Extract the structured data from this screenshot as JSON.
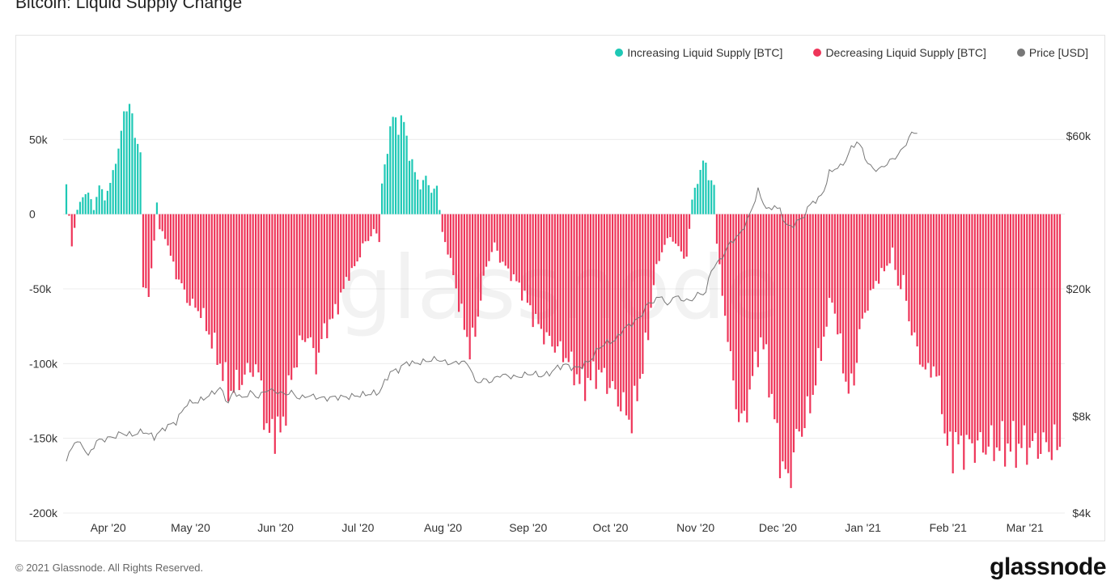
{
  "title": "Bitcoin: Liquid Supply Change",
  "footer": {
    "copyright": "© 2021 Glassnode. All Rights Reserved.",
    "brand": "glassnode"
  },
  "watermark": "glassnode",
  "colors": {
    "increase": "#1ec8b5",
    "decrease": "#ee3559",
    "price": "#777777",
    "grid": "#ececec",
    "axis_text": "#333333"
  },
  "legend": [
    {
      "label": "Increasing Liquid Supply [BTC]",
      "color": "#1ec8b5"
    },
    {
      "label": "Decreasing Liquid Supply [BTC]",
      "color": "#ee3559"
    },
    {
      "label": "Price [USD]",
      "color": "#777777"
    }
  ],
  "chart_data": {
    "type": "bar",
    "title": "Bitcoin: Liquid Supply Change",
    "x_start_date": "2020-03-20",
    "x_end_date": "2021-03-17",
    "x_tick_labels": [
      "Apr '20",
      "May '20",
      "Jun '20",
      "Jul '20",
      "Aug '20",
      "Sep '20",
      "Oct '20",
      "Nov '20",
      "Dec '20",
      "Jan '21",
      "Feb '21",
      "Mar '21"
    ],
    "x_tick_dates": [
      "2020-04-01",
      "2020-05-01",
      "2020-06-01",
      "2020-07-01",
      "2020-08-01",
      "2020-09-01",
      "2020-10-01",
      "2020-11-01",
      "2020-12-01",
      "2021-01-01",
      "2021-02-01",
      "2021-03-01"
    ],
    "y_left": {
      "ticks": [
        50000,
        0,
        -50000,
        -100000,
        -150000,
        -200000
      ],
      "tick_labels": [
        "50k",
        "0",
        "-50k",
        "-100k",
        "-150k",
        "-200k"
      ],
      "range": [
        -200000,
        100000
      ]
    },
    "y_right": {
      "scale": "log",
      "ticks": [
        60000,
        20000,
        8000,
        4000
      ],
      "tick_labels": [
        "$60k",
        "$20k",
        "$8k",
        "$4k"
      ],
      "range": [
        4000,
        100000
      ]
    },
    "grid": true,
    "legend_position": "top-right",
    "series": [
      {
        "name": "Liquid Supply Change [BTC]",
        "kind": "bar",
        "color_positive": "#1ec8b5",
        "color_negative": "#ee3559",
        "keypoints": [
          [
            0,
            20000
          ],
          [
            2,
            -22000
          ],
          [
            4,
            3000
          ],
          [
            6,
            12000
          ],
          [
            8,
            15000
          ],
          [
            10,
            3000
          ],
          [
            12,
            20000
          ],
          [
            14,
            10000
          ],
          [
            17,
            27000
          ],
          [
            19,
            45000
          ],
          [
            21,
            65000
          ],
          [
            23,
            78000
          ],
          [
            25,
            50000
          ],
          [
            27,
            45000
          ],
          [
            28,
            -45000
          ],
          [
            30,
            -55000
          ],
          [
            31,
            -40000
          ],
          [
            33,
            8000
          ],
          [
            34,
            -10000
          ],
          [
            36,
            -15000
          ],
          [
            38,
            -28000
          ],
          [
            40,
            -40000
          ],
          [
            42,
            -48000
          ],
          [
            45,
            -60000
          ],
          [
            48,
            -63000
          ],
          [
            50,
            -70000
          ],
          [
            53,
            -85000
          ],
          [
            56,
            -100000
          ],
          [
            59,
            -118000
          ],
          [
            62,
            -115000
          ],
          [
            65,
            -108000
          ],
          [
            68,
            -102000
          ],
          [
            71,
            -112000
          ],
          [
            73,
            -152000
          ],
          [
            75,
            -140000
          ],
          [
            77,
            -150000
          ],
          [
            79,
            -138000
          ],
          [
            82,
            -110000
          ],
          [
            85,
            -88000
          ],
          [
            88,
            -80000
          ],
          [
            91,
            -100000
          ],
          [
            94,
            -78000
          ],
          [
            97,
            -70000
          ],
          [
            100,
            -55000
          ],
          [
            103,
            -40000
          ],
          [
            106,
            -33000
          ],
          [
            108,
            -20000
          ],
          [
            110,
            -18000
          ],
          [
            112,
            -10000
          ],
          [
            114,
            -18000
          ],
          [
            115,
            20000
          ],
          [
            117,
            45000
          ],
          [
            119,
            65000
          ],
          [
            121,
            60000
          ],
          [
            123,
            62000
          ],
          [
            125,
            40000
          ],
          [
            127,
            28000
          ],
          [
            129,
            18000
          ],
          [
            131,
            25000
          ],
          [
            133,
            15000
          ],
          [
            135,
            18000
          ],
          [
            137,
            -12000
          ],
          [
            139,
            -25000
          ],
          [
            141,
            -40000
          ],
          [
            143,
            -60000
          ],
          [
            145,
            -75000
          ],
          [
            147,
            -90000
          ],
          [
            149,
            -80000
          ],
          [
            151,
            -55000
          ],
          [
            153,
            -35000
          ],
          [
            156,
            -20000
          ],
          [
            158,
            -30000
          ],
          [
            161,
            -38000
          ],
          [
            164,
            -45000
          ],
          [
            167,
            -55000
          ],
          [
            170,
            -68000
          ],
          [
            173,
            -78000
          ],
          [
            176,
            -85000
          ],
          [
            179,
            -90000
          ],
          [
            182,
            -95000
          ],
          [
            185,
            -105000
          ],
          [
            188,
            -115000
          ],
          [
            191,
            -110000
          ],
          [
            194,
            -105000
          ],
          [
            197,
            -112000
          ],
          [
            200,
            -120000
          ],
          [
            203,
            -130000
          ],
          [
            206,
            -138000
          ],
          [
            208,
            -120000
          ],
          [
            210,
            -100000
          ],
          [
            212,
            -80000
          ],
          [
            214,
            -45000
          ],
          [
            216,
            -30000
          ],
          [
            218,
            -20000
          ],
          [
            220,
            -15000
          ],
          [
            222,
            -20000
          ],
          [
            224,
            -25000
          ],
          [
            226,
            -30000
          ],
          [
            228,
            10000
          ],
          [
            230,
            22000
          ],
          [
            232,
            37000
          ],
          [
            234,
            25000
          ],
          [
            236,
            20000
          ],
          [
            237,
            -18000
          ],
          [
            239,
            -55000
          ],
          [
            241,
            -80000
          ],
          [
            243,
            -115000
          ],
          [
            245,
            -135000
          ],
          [
            247,
            -140000
          ],
          [
            249,
            -118000
          ],
          [
            251,
            -100000
          ],
          [
            253,
            -85000
          ],
          [
            255,
            -95000
          ],
          [
            257,
            -125000
          ],
          [
            259,
            -150000
          ],
          [
            261,
            -170000
          ],
          [
            263,
            -180000
          ],
          [
            265,
            -160000
          ],
          [
            267,
            -145000
          ],
          [
            269,
            -140000
          ],
          [
            271,
            -128000
          ],
          [
            273,
            -110000
          ],
          [
            275,
            -92000
          ],
          [
            277,
            -72000
          ],
          [
            279,
            -55000
          ],
          [
            281,
            -78000
          ],
          [
            283,
            -100000
          ],
          [
            285,
            -120000
          ],
          [
            287,
            -110000
          ],
          [
            289,
            -80000
          ],
          [
            291,
            -65000
          ],
          [
            293,
            -55000
          ],
          [
            295,
            -45000
          ],
          [
            297,
            -40000
          ],
          [
            299,
            -35000
          ],
          [
            301,
            -25000
          ],
          [
            303,
            -48000
          ],
          [
            305,
            -45000
          ],
          [
            307,
            -70000
          ],
          [
            309,
            -85000
          ],
          [
            311,
            -95000
          ],
          [
            313,
            -108000
          ],
          [
            315,
            -100000
          ],
          [
            317,
            -110000
          ],
          [
            319,
            -120000
          ],
          [
            320,
            -155000
          ]
        ]
      },
      {
        "name": "Price [USD]",
        "kind": "line",
        "color": "#777777",
        "keypoints": [
          [
            0,
            5800
          ],
          [
            3,
            6700
          ],
          [
            6,
            6500
          ],
          [
            8,
            6000
          ],
          [
            11,
            6700
          ],
          [
            14,
            6800
          ],
          [
            17,
            6900
          ],
          [
            20,
            7100
          ],
          [
            24,
            7000
          ],
          [
            28,
            7200
          ],
          [
            32,
            6900
          ],
          [
            36,
            7400
          ],
          [
            40,
            7700
          ],
          [
            44,
            8800
          ],
          [
            48,
            8900
          ],
          [
            52,
            9300
          ],
          [
            56,
            9800
          ],
          [
            59,
            8800
          ],
          [
            61,
            9600
          ],
          [
            64,
            9100
          ],
          [
            67,
            9500
          ],
          [
            70,
            9200
          ],
          [
            73,
            9700
          ],
          [
            76,
            9600
          ],
          [
            79,
            9400
          ],
          [
            82,
            9500
          ],
          [
            85,
            9100
          ],
          [
            88,
            9300
          ],
          [
            91,
            9200
          ],
          [
            94,
            9100
          ],
          [
            98,
            9200
          ],
          [
            102,
            9200
          ],
          [
            106,
            9300
          ],
          [
            110,
            9400
          ],
          [
            114,
            9500
          ],
          [
            118,
            11000
          ],
          [
            121,
            11200
          ],
          [
            124,
            11800
          ],
          [
            127,
            11700
          ],
          [
            131,
            11900
          ],
          [
            135,
            12100
          ],
          [
            138,
            11800
          ],
          [
            141,
            11700
          ],
          [
            144,
            11900
          ],
          [
            147,
            11500
          ],
          [
            149,
            10200
          ],
          [
            152,
            10400
          ],
          [
            155,
            10300
          ],
          [
            158,
            10800
          ],
          [
            161,
            10700
          ],
          [
            164,
            10600
          ],
          [
            167,
            10800
          ],
          [
            170,
            10900
          ],
          [
            173,
            10700
          ],
          [
            176,
            10900
          ],
          [
            179,
            11400
          ],
          [
            182,
            11600
          ],
          [
            185,
            11300
          ],
          [
            188,
            11500
          ],
          [
            191,
            12000
          ],
          [
            194,
            13100
          ],
          [
            197,
            13600
          ],
          [
            200,
            13800
          ],
          [
            203,
            15000
          ],
          [
            206,
            15600
          ],
          [
            209,
            16300
          ],
          [
            212,
            18000
          ],
          [
            215,
            18500
          ],
          [
            217,
            19100
          ],
          [
            219,
            17500
          ],
          [
            221,
            19000
          ],
          [
            224,
            18600
          ],
          [
            227,
            18300
          ],
          [
            230,
            19200
          ],
          [
            233,
            19500
          ],
          [
            235,
            23000
          ],
          [
            238,
            24500
          ],
          [
            240,
            26000
          ],
          [
            242,
            28000
          ],
          [
            245,
            29300
          ],
          [
            248,
            32500
          ],
          [
            250,
            36000
          ],
          [
            252,
            40500
          ],
          [
            254,
            37000
          ],
          [
            256,
            35000
          ],
          [
            258,
            36500
          ],
          [
            260,
            35000
          ],
          [
            262,
            32000
          ],
          [
            264,
            31000
          ],
          [
            266,
            32500
          ],
          [
            268,
            33000
          ],
          [
            270,
            35500
          ],
          [
            272,
            37500
          ],
          [
            274,
            38000
          ],
          [
            276,
            40500
          ],
          [
            278,
            46000
          ],
          [
            280,
            47500
          ],
          [
            282,
            48000
          ],
          [
            284,
            50500
          ],
          [
            286,
            55000
          ],
          [
            288,
            57500
          ],
          [
            290,
            54500
          ],
          [
            292,
            49000
          ],
          [
            294,
            47500
          ],
          [
            296,
            47000
          ],
          [
            298,
            48500
          ],
          [
            300,
            50000
          ],
          [
            302,
            51500
          ],
          [
            304,
            53500
          ],
          [
            306,
            57000
          ],
          [
            308,
            61000
          ],
          [
            310,
            62000
          ]
        ]
      }
    ]
  }
}
